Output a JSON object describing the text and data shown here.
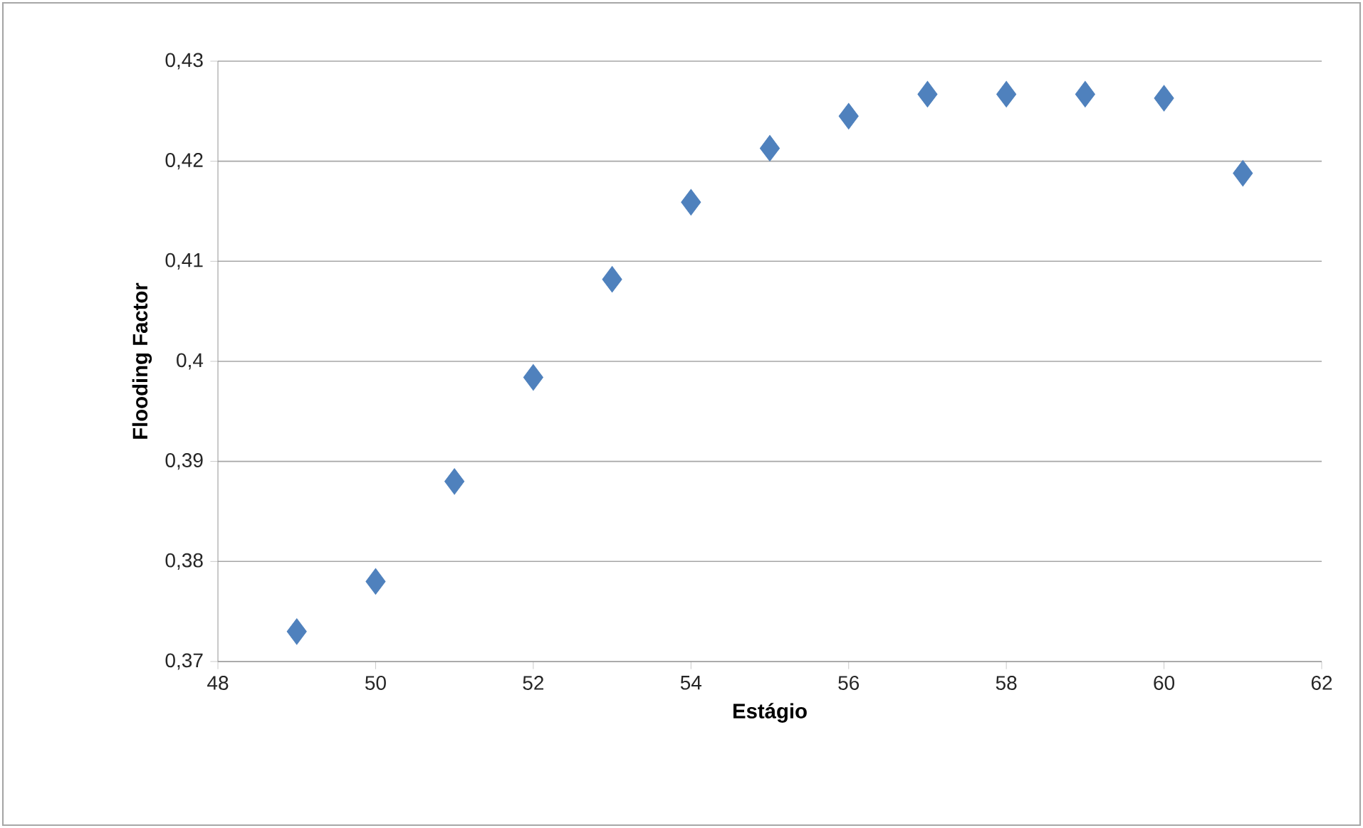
{
  "chart_data": {
    "type": "scatter",
    "xlabel": "Estágio",
    "ylabel": "Flooding Factor",
    "x": [
      49,
      50,
      51,
      52,
      53,
      54,
      55,
      56,
      57,
      58,
      59,
      60,
      61
    ],
    "series": [
      {
        "color": "#4f81bd",
        "values": [
          0.373,
          0.378,
          0.388,
          0.3984,
          0.4082,
          0.4159,
          0.4213,
          0.4245,
          0.4267,
          0.4267,
          0.4267,
          0.4263,
          0.4188
        ]
      }
    ],
    "xlim": [
      48,
      62
    ],
    "xticks": [
      48,
      50,
      52,
      54,
      56,
      58,
      60,
      62
    ],
    "ylim": [
      0.37,
      0.43
    ],
    "yticks": [
      {
        "value": 0.37,
        "label": "0,37"
      },
      {
        "value": 0.38,
        "label": "0,38"
      },
      {
        "value": 0.39,
        "label": "0,39"
      },
      {
        "value": 0.4,
        "label": "0,4"
      },
      {
        "value": 0.41,
        "label": "0,41"
      },
      {
        "value": 0.42,
        "label": "0,42"
      },
      {
        "value": 0.43,
        "label": "0,43"
      }
    ],
    "grid": "y",
    "marker": "diamond"
  }
}
